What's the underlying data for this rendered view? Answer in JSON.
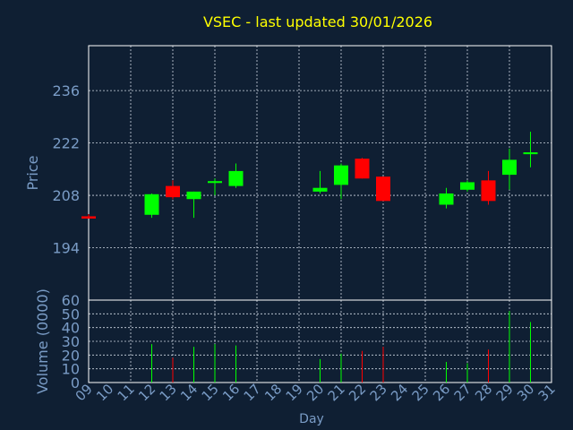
{
  "chart_data": {
    "type": "candlestick",
    "title": "VSEC - last updated 30/01/2026",
    "xlabel": "Day",
    "price_panel": {
      "ylabel": "Price",
      "ylim": [
        180,
        248
      ],
      "yticks": [
        194,
        208,
        222,
        236
      ],
      "grid": true
    },
    "volume_panel": {
      "ylabel": "Volume (0000)",
      "ylim": [
        0,
        60
      ],
      "yticks": [
        0,
        10,
        20,
        30,
        40,
        50,
        60
      ],
      "grid": true
    },
    "x_ticks": [
      "09",
      "10",
      "11",
      "12",
      "13",
      "14",
      "15",
      "16",
      "17",
      "18",
      "19",
      "20",
      "21",
      "22",
      "23",
      "24",
      "25",
      "26",
      "27",
      "28",
      "29",
      "30",
      "31"
    ],
    "colors": {
      "background": "#0f1f33",
      "up": "#00ff00",
      "down": "#ff0000",
      "title": "#ffff00",
      "axis_text": "#7a9cc6",
      "frame": "#ffffff",
      "grid": "#cfd8e3"
    },
    "candles": [
      {
        "day": "09",
        "open": 202.4,
        "high": 203.0,
        "low": 201.8,
        "close": 201.8,
        "volume": 0
      },
      {
        "day": "12",
        "open": 202.8,
        "high": 208.5,
        "low": 202.0,
        "close": 208.3,
        "volume": 28
      },
      {
        "day": "13",
        "open": 210.5,
        "high": 212.0,
        "low": 207.0,
        "close": 207.5,
        "volume": 18
      },
      {
        "day": "14",
        "open": 207.0,
        "high": 209.0,
        "low": 202.0,
        "close": 209.0,
        "volume": 26
      },
      {
        "day": "15",
        "open": 211.3,
        "high": 212.5,
        "low": 208.0,
        "close": 211.8,
        "volume": 28
      },
      {
        "day": "16",
        "open": 210.5,
        "high": 216.5,
        "low": 210.0,
        "close": 214.5,
        "volume": 27
      },
      {
        "day": "20",
        "open": 209.0,
        "high": 214.5,
        "low": 208.5,
        "close": 210.0,
        "volume": 17
      },
      {
        "day": "21",
        "open": 210.8,
        "high": 216.5,
        "low": 207.0,
        "close": 216.0,
        "volume": 21
      },
      {
        "day": "22",
        "open": 217.8,
        "high": 218.0,
        "low": 212.5,
        "close": 212.5,
        "volume": 23
      },
      {
        "day": "23",
        "open": 213.0,
        "high": 213.0,
        "low": 206.5,
        "close": 206.5,
        "volume": 26
      },
      {
        "day": "26",
        "open": 205.5,
        "high": 210.0,
        "low": 204.5,
        "close": 208.5,
        "volume": 15
      },
      {
        "day": "27",
        "open": 209.5,
        "high": 212.0,
        "low": 209.0,
        "close": 211.5,
        "volume": 14
      },
      {
        "day": "28",
        "open": 212.0,
        "high": 214.5,
        "low": 205.5,
        "close": 206.5,
        "volume": 24
      },
      {
        "day": "29",
        "open": 213.5,
        "high": 220.5,
        "low": 209.5,
        "close": 217.5,
        "volume": 52
      },
      {
        "day": "30",
        "open": 219.0,
        "high": 225.0,
        "low": 215.5,
        "close": 219.5,
        "volume": 44
      }
    ]
  }
}
